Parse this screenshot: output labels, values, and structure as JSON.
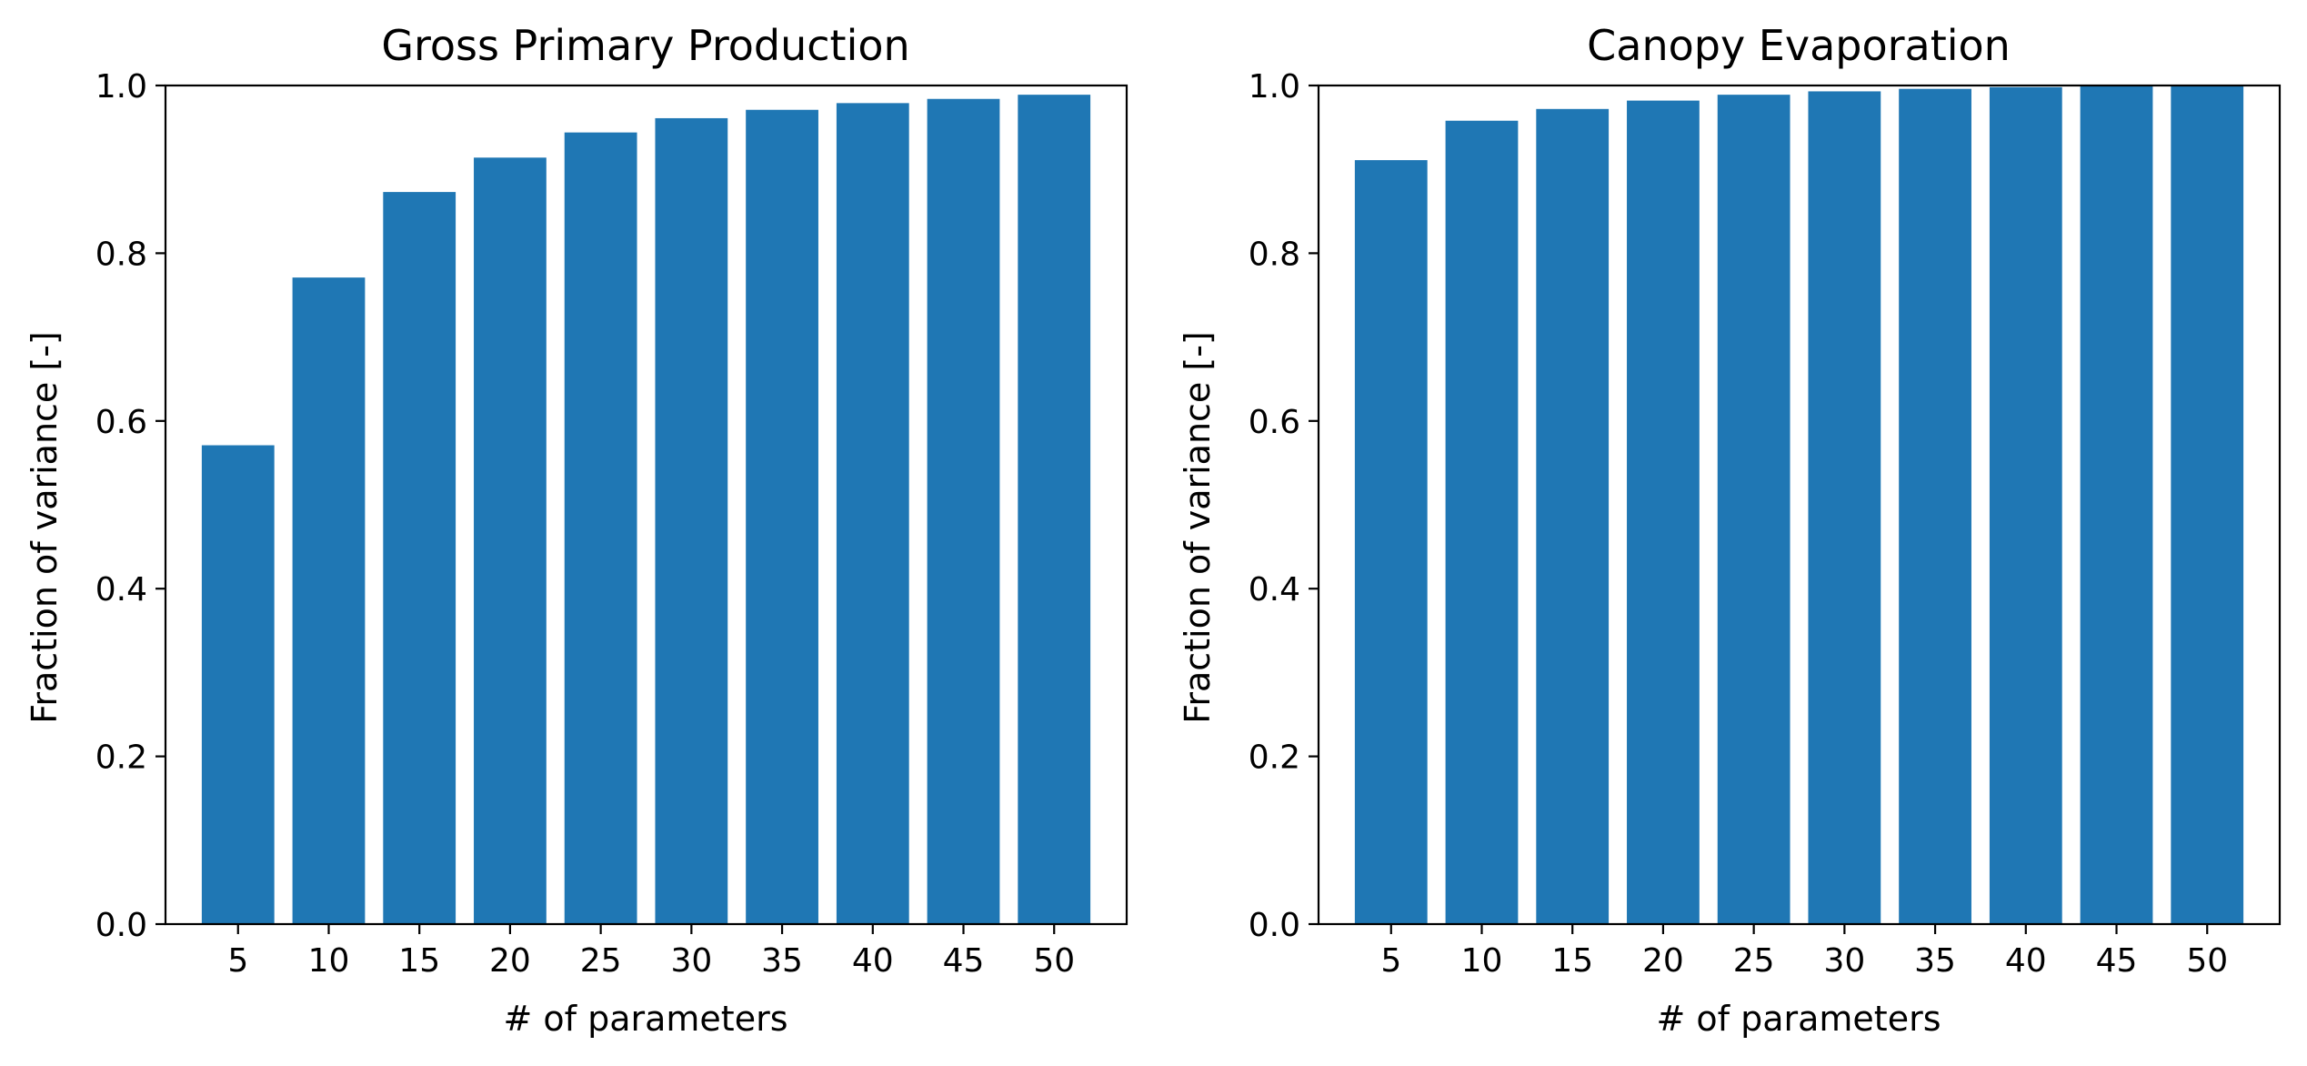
{
  "chart_data": [
    {
      "type": "bar",
      "title": "Gross Primary Production",
      "xlabel": "# of parameters",
      "ylabel": "Fraction of variance [-]",
      "categories": [
        "5",
        "10",
        "15",
        "20",
        "25",
        "30",
        "35",
        "40",
        "45",
        "50"
      ],
      "values": [
        0.571,
        0.771,
        0.873,
        0.914,
        0.944,
        0.961,
        0.971,
        0.979,
        0.984,
        0.989
      ],
      "ylim": [
        0,
        1.0
      ],
      "yticks": [
        "0.0",
        "0.2",
        "0.4",
        "0.6",
        "0.8",
        "1.0"
      ],
      "color": "#1f77b4",
      "grid": false
    },
    {
      "type": "bar",
      "title": "Canopy Evaporation",
      "xlabel": "# of parameters",
      "ylabel": "Fraction of variance [-]",
      "categories": [
        "5",
        "10",
        "15",
        "20",
        "25",
        "30",
        "35",
        "40",
        "45",
        "50"
      ],
      "values": [
        0.911,
        0.958,
        0.972,
        0.982,
        0.989,
        0.993,
        0.996,
        0.998,
        0.999,
        1.0
      ],
      "ylim": [
        0,
        1.0
      ],
      "yticks": [
        "0.0",
        "0.2",
        "0.4",
        "0.6",
        "0.8",
        "1.0"
      ],
      "color": "#1f77b4",
      "grid": false
    }
  ]
}
